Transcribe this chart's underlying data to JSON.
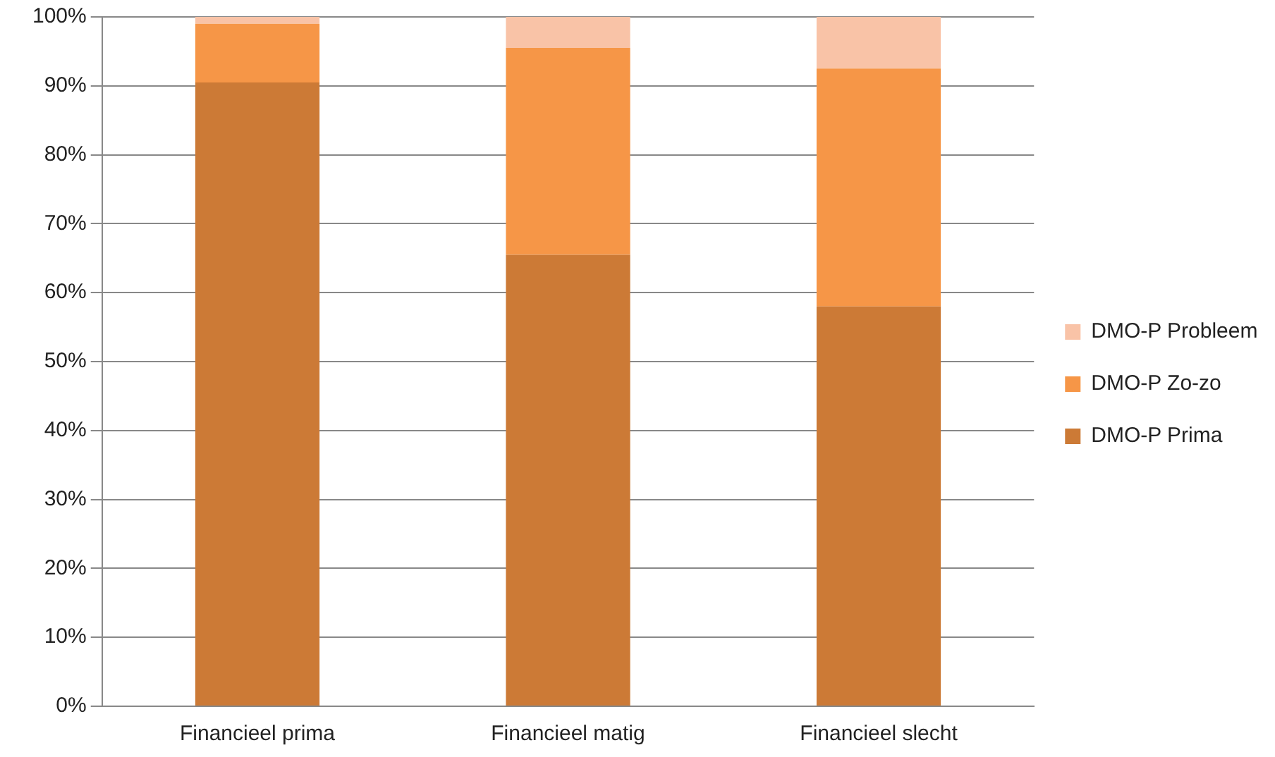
{
  "chart_data": {
    "type": "bar",
    "stacked": true,
    "categories": [
      "Financieel prima",
      "Financieel matig",
      "Financieel slecht"
    ],
    "series": [
      {
        "name": "DMO-P Prima",
        "color": "#cc7a36",
        "values": [
          90.5,
          65.5,
          58
        ]
      },
      {
        "name": "DMO-P Zo-zo",
        "color": "#f69647",
        "values": [
          8.5,
          30,
          34.5
        ]
      },
      {
        "name": "DMO-P Probleem",
        "color": "#f9c3a7",
        "values": [
          1,
          4.5,
          7.5
        ]
      }
    ],
    "ylim": [
      0,
      100
    ],
    "yticks": [
      {
        "value": 0,
        "label": "0%"
      },
      {
        "value": 10,
        "label": "10%"
      },
      {
        "value": 20,
        "label": "20%"
      },
      {
        "value": 30,
        "label": "30%"
      },
      {
        "value": 40,
        "label": "40%"
      },
      {
        "value": 50,
        "label": "50%"
      },
      {
        "value": 60,
        "label": "60%"
      },
      {
        "value": 70,
        "label": "70%"
      },
      {
        "value": 80,
        "label": "80%"
      },
      {
        "value": 90,
        "label": "90%"
      },
      {
        "value": 100,
        "label": "100%"
      }
    ],
    "grid": "y",
    "legend": "right"
  }
}
